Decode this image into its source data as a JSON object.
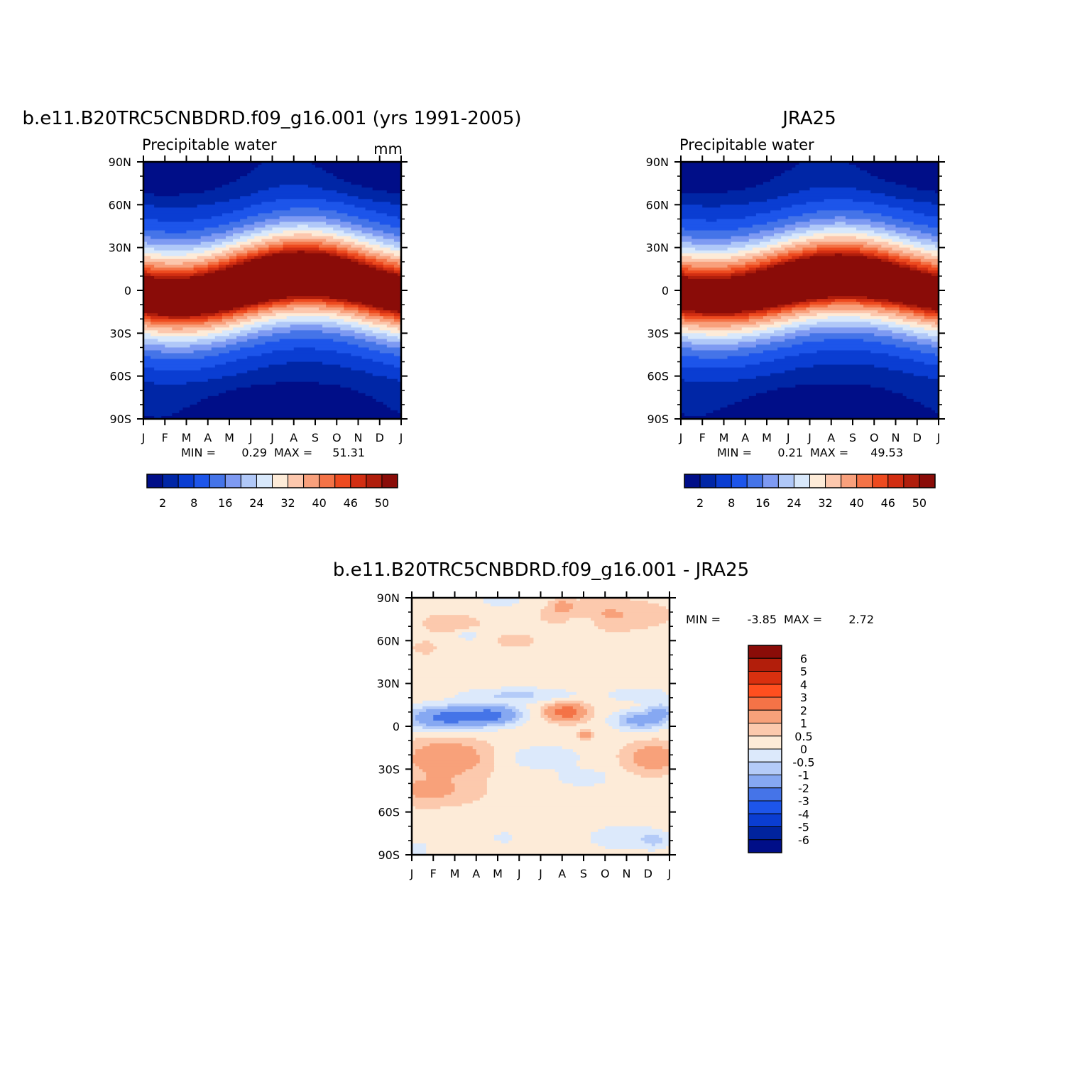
{
  "colors": {
    "main_scale": [
      "#000e88",
      "#0026a6",
      "#0a3dd2",
      "#1d55ea",
      "#4574e8",
      "#7e9af2",
      "#b0c8f8",
      "#d8e8fb",
      "#fdebd8",
      "#fcc7ad",
      "#f8a07c",
      "#f47347",
      "#ed4a1f",
      "#d22e12",
      "#b01e0c",
      "#8a0c08"
    ],
    "diff_scale": [
      "#000e88",
      "#00239e",
      "#0a3dd2",
      "#1d55ea",
      "#4574e8",
      "#86a8f2",
      "#b4cbf8",
      "#dce9fb",
      "#fdebd8",
      "#fcc9ad",
      "#f8a17a",
      "#f47347",
      "#ff4f1f",
      "#d9300f",
      "#b21e0b",
      "#8a0c08"
    ]
  },
  "chart_data": [
    {
      "type": "heatmap",
      "title": "b.e11.B20TRC5CNBDRD.f09_g16.001 (yrs 1991-2005)",
      "left_label": "Precipitable water",
      "right_label": "mm",
      "x_ticks": [
        "J",
        "F",
        "M",
        "A",
        "M",
        "J",
        "J",
        "A",
        "S",
        "O",
        "N",
        "D",
        "J"
      ],
      "y_ticks": [
        "90N",
        "60N",
        "30N",
        "0",
        "30S",
        "60S",
        "90S"
      ],
      "x_range": [
        0,
        12
      ],
      "y_range": [
        -90,
        90
      ],
      "min_label": "MIN =",
      "min_value": "0.29",
      "max_label": "MAX =",
      "max_value": "51.31",
      "colorbar_labels": [
        "2",
        "8",
        "16",
        "24",
        "32",
        "40",
        "46",
        "50"
      ],
      "colorbar_orientation": "horizontal",
      "field": {
        "amp": 50.2,
        "ncenter": 8,
        "swing": 11,
        "width": 31,
        "polar_n": 3.5,
        "polar_s": 3.0
      }
    },
    {
      "type": "heatmap",
      "title": "JRA25",
      "left_label": "Precipitable water",
      "right_label": "",
      "x_ticks": [
        "J",
        "F",
        "M",
        "A",
        "M",
        "J",
        "J",
        "A",
        "S",
        "O",
        "N",
        "D",
        "J"
      ],
      "y_ticks": [
        "90N",
        "60N",
        "30N",
        "0",
        "30S",
        "60S",
        "90S"
      ],
      "x_range": [
        0,
        12
      ],
      "y_range": [
        -90,
        90
      ],
      "min_label": "MIN =",
      "min_value": "0.21",
      "max_label": "MAX =",
      "max_value": "49.53",
      "colorbar_labels": [
        "2",
        "8",
        "16",
        "24",
        "32",
        "40",
        "46",
        "50"
      ],
      "colorbar_orientation": "horizontal",
      "field": {
        "amp": 48.6,
        "ncenter": 7,
        "swing": 9,
        "width": 31,
        "polar_n": 2.8,
        "polar_s": 2.6
      }
    },
    {
      "type": "heatmap",
      "title": "b.e11.B20TRC5CNBDRD.f09_g16.001 - JRA25",
      "left_label": "",
      "right_label": "",
      "x_ticks": [
        "J",
        "F",
        "M",
        "A",
        "M",
        "J",
        "J",
        "A",
        "S",
        "O",
        "N",
        "D",
        "J"
      ],
      "y_ticks": [
        "90N",
        "60N",
        "30N",
        "0",
        "30S",
        "60S",
        "90S"
      ],
      "x_range": [
        0,
        12
      ],
      "y_range": [
        -90,
        90
      ],
      "min_label": "MIN =",
      "min_value": "-3.85",
      "max_label": "MAX =",
      "max_value": "2.72",
      "colorbar_labels": [
        "6",
        "5",
        "4",
        "3",
        "2",
        "1",
        "0.5",
        "0",
        "-0.5",
        "-1",
        "-2",
        "-3",
        "-4",
        "-5",
        "-6"
      ],
      "colorbar_orientation": "vertical",
      "diff_levels": [
        -6,
        -5,
        -4,
        -3,
        -2,
        -1,
        -0.5,
        0,
        0.5,
        1,
        2,
        3,
        4,
        5,
        6
      ],
      "diff_features": [
        {
          "m": 1.6,
          "lat": 6,
          "dm": 1.8,
          "dl": 8,
          "a": -2.6
        },
        {
          "m": 3.8,
          "lat": 8,
          "dm": 1.3,
          "dl": 7,
          "a": -2.2
        },
        {
          "m": 10.6,
          "lat": 4,
          "dm": 1.2,
          "dl": 7,
          "a": -1.6
        },
        {
          "m": 11.6,
          "lat": 10,
          "dm": 0.6,
          "dl": 6,
          "a": -1.4
        },
        {
          "m": 5.0,
          "lat": 22,
          "dm": 2.6,
          "dl": 5,
          "a": -0.9
        },
        {
          "m": 10.6,
          "lat": 22,
          "dm": 1.4,
          "dl": 5,
          "a": -0.7
        },
        {
          "m": 7.2,
          "lat": 10,
          "dm": 0.9,
          "dl": 6,
          "a": 2.4
        },
        {
          "m": 8.1,
          "lat": -6,
          "dm": 0.3,
          "dl": 3,
          "a": 1.5
        },
        {
          "m": 1.6,
          "lat": -22,
          "dm": 1.8,
          "dl": 12,
          "a": 1.5
        },
        {
          "m": 11.2,
          "lat": -22,
          "dm": 1.2,
          "dl": 10,
          "a": 1.3
        },
        {
          "m": 0.8,
          "lat": -45,
          "dm": 2.2,
          "dl": 10,
          "a": 0.9
        },
        {
          "m": 6.2,
          "lat": -22,
          "dm": 1.6,
          "dl": 8,
          "a": -0.8
        },
        {
          "m": 8.0,
          "lat": -36,
          "dm": 1.2,
          "dl": 6,
          "a": -0.7
        },
        {
          "m": 9.9,
          "lat": -78,
          "dm": 1.6,
          "dl": 9,
          "a": -0.8
        },
        {
          "m": 11.4,
          "lat": -80,
          "dm": 0.6,
          "dl": 6,
          "a": -0.7
        },
        {
          "m": 4.3,
          "lat": -78,
          "dm": 0.5,
          "dl": 4,
          "a": -0.6
        },
        {
          "m": 0.3,
          "lat": -86,
          "dm": 0.5,
          "dl": 5,
          "a": -0.6
        },
        {
          "m": 4.2,
          "lat": 88,
          "dm": 1.0,
          "dl": 5,
          "a": -0.6
        },
        {
          "m": 8.0,
          "lat": 74,
          "dm": 0.8,
          "dl": 6,
          "a": -0.6
        },
        {
          "m": 2.6,
          "lat": 64,
          "dm": 0.6,
          "dl": 4,
          "a": -0.6
        },
        {
          "m": 9.0,
          "lat": 78,
          "dm": 2.6,
          "dl": 10,
          "a": 0.8
        },
        {
          "m": 7.0,
          "lat": 84,
          "dm": 0.4,
          "dl": 4,
          "a": 1.2
        },
        {
          "m": 1.8,
          "lat": 72,
          "dm": 1.2,
          "dl": 6,
          "a": 0.7
        },
        {
          "m": 4.8,
          "lat": 60,
          "dm": 0.8,
          "dl": 4,
          "a": 0.7
        },
        {
          "m": 0.6,
          "lat": 55,
          "dm": 0.5,
          "dl": 4,
          "a": 0.6
        }
      ],
      "diff_base": 0.3
    }
  ]
}
